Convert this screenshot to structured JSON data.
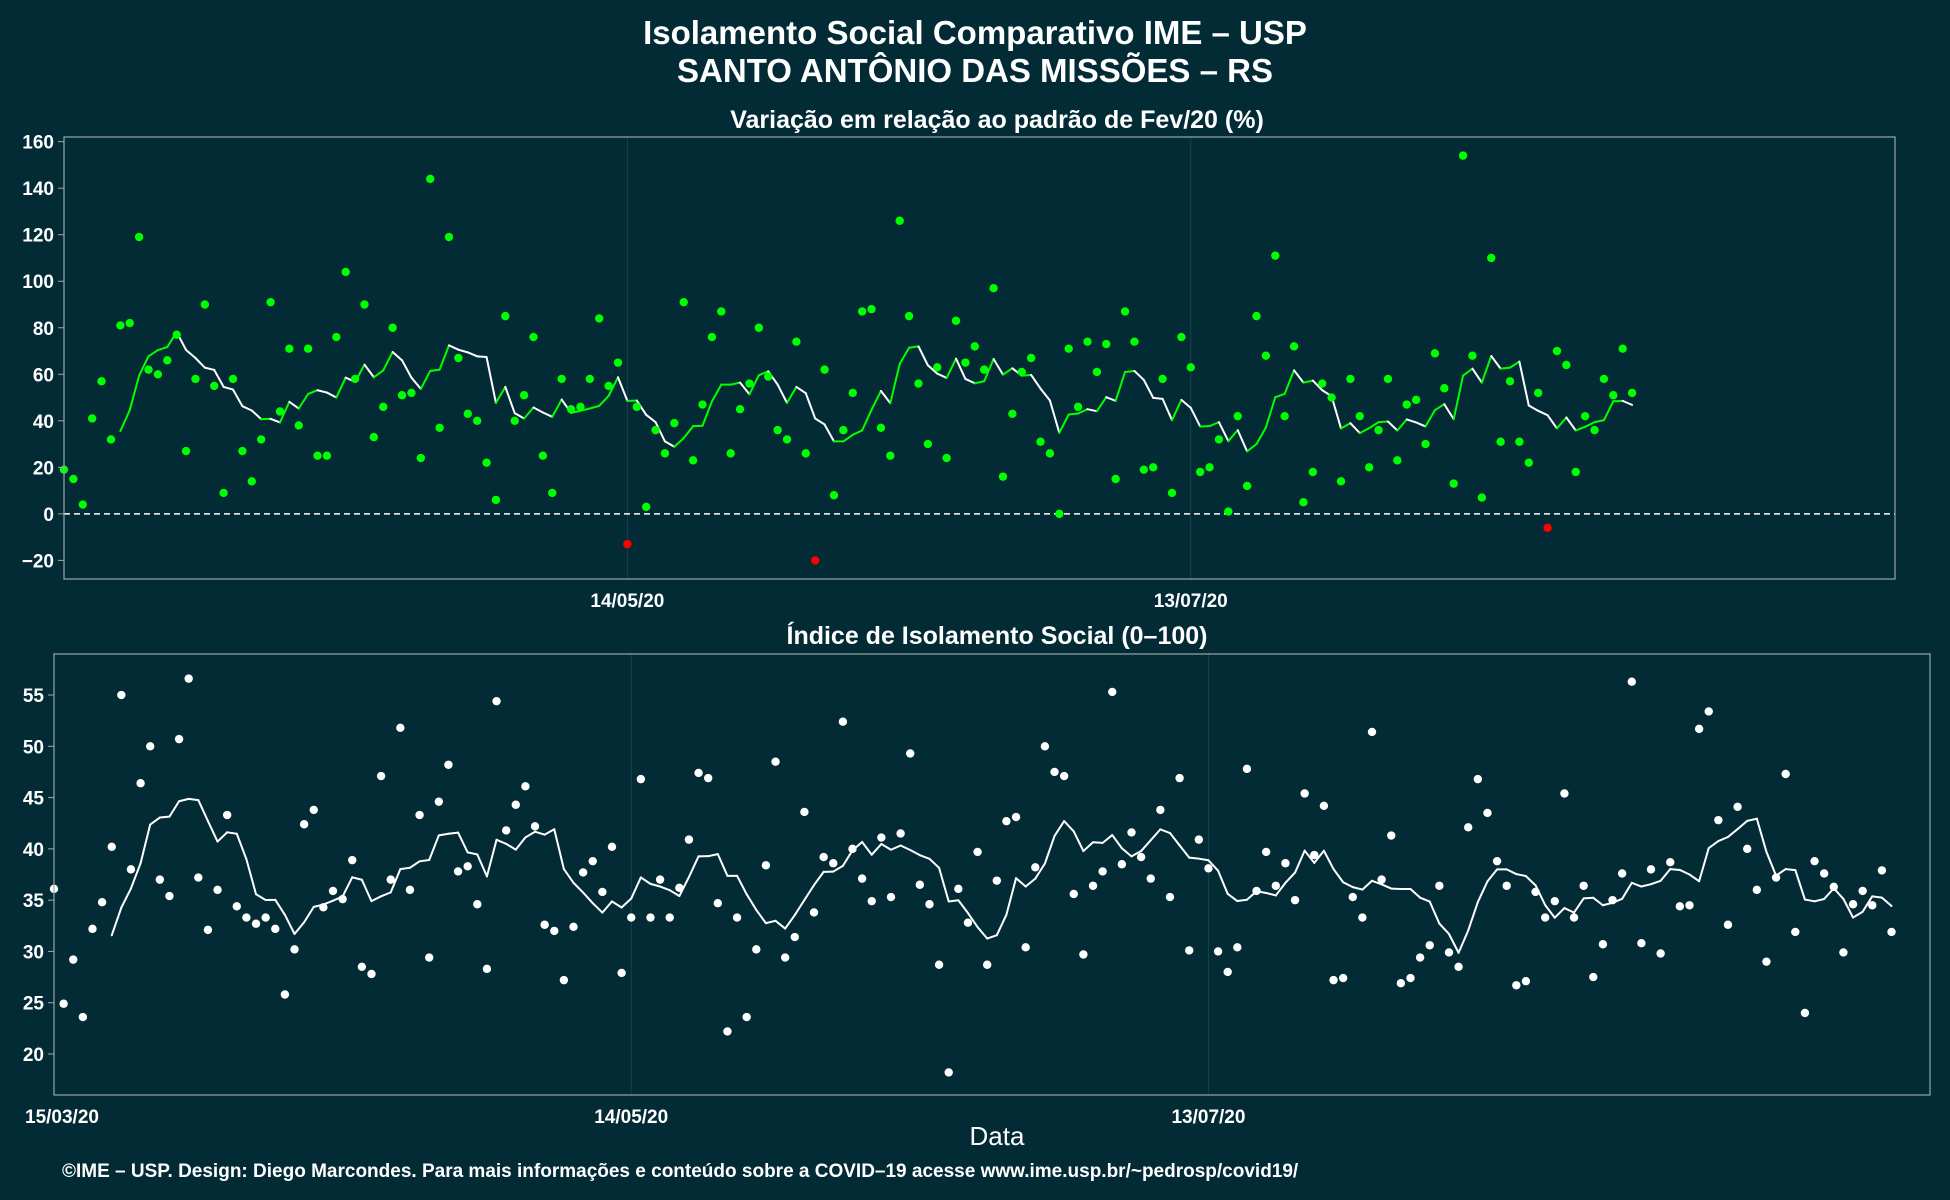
{
  "title_line1": "Isolamento Social Comparativo IME – USP",
  "title_line2": "SANTO ANTÔNIO DAS MISSÕES – RS",
  "xlabel": "Data",
  "caption": "©IME – USP. Design: Diego Marcondes. Para mais informações e conteúdo sobre a COVID–19 acesse www.ime.usp.br/~pedrosp/covid19/",
  "colors": {
    "background": "#022b35",
    "positive": "#00ff00",
    "negative": "#ff0000",
    "index": "#ffffff",
    "axis": "#9aa6ab",
    "grid": "#14434e"
  },
  "chart_data": [
    {
      "type": "scatter",
      "title": "Variação em relação ao padrão de Fev/20 (%)",
      "x_start": "15/03/20",
      "x_ticks": [
        "14/05/20",
        "13/07/20"
      ],
      "x_tick_days": [
        60,
        120
      ],
      "xlim_days": [
        0,
        195
      ],
      "ylim": [
        -28,
        162
      ],
      "y_ticks": [
        -20,
        0,
        20,
        40,
        60,
        80,
        100,
        120,
        140,
        160
      ],
      "reference_line": 0,
      "grid": true,
      "smoothing": "moving average (7 days)",
      "points": [
        19,
        15,
        4,
        41,
        57,
        32,
        81,
        82,
        119,
        62,
        60,
        66,
        77,
        27,
        58,
        90,
        55,
        9,
        58,
        27,
        14,
        32,
        91,
        44,
        71,
        38,
        71,
        25,
        25,
        76,
        104,
        58,
        90,
        33,
        46,
        80,
        51,
        52,
        24,
        144,
        37,
        119,
        67,
        43,
        40,
        22,
        6,
        85,
        40,
        51,
        76,
        25,
        9,
        58,
        45,
        46,
        58,
        84,
        55,
        65,
        -13,
        46,
        3,
        36,
        26,
        39,
        91,
        23,
        47,
        76,
        87,
        26,
        45,
        56,
        80,
        59,
        36,
        32,
        74,
        26,
        -20,
        62,
        8,
        36,
        52,
        87,
        88,
        37,
        25,
        126,
        85,
        56,
        30,
        63,
        24,
        83,
        65,
        72,
        62,
        97,
        16,
        43,
        61,
        67,
        31,
        26,
        0,
        71,
        46,
        74,
        61,
        73,
        15,
        87,
        74,
        19,
        20,
        58,
        9,
        76,
        63,
        18,
        20,
        32,
        1,
        42,
        12,
        85,
        68,
        111,
        42,
        72,
        5,
        18,
        56,
        50,
        14,
        58,
        42,
        20,
        36,
        58,
        23,
        47,
        49,
        30,
        69,
        54,
        13,
        154,
        68,
        7,
        110,
        31,
        57,
        31,
        22,
        52,
        -6,
        70,
        64,
        18,
        42,
        36,
        58,
        51,
        71,
        52
      ]
    },
    {
      "type": "scatter",
      "title": "Índice de Isolamento Social (0–100)",
      "x_ticks": [
        "15/03/20",
        "14/05/20",
        "13/07/20"
      ],
      "x_tick_days": [
        0,
        60,
        120
      ],
      "xlim_days": [
        0,
        195
      ],
      "ylim": [
        16,
        59
      ],
      "y_ticks": [
        20,
        25,
        30,
        35,
        40,
        45,
        50,
        55
      ],
      "grid": true,
      "smoothing": "moving average (7 days)",
      "points": [
        36.1,
        24.9,
        29.2,
        23.6,
        32.2,
        34.8,
        40.2,
        55,
        38,
        46.4,
        50,
        37,
        35.4,
        50.7,
        56.6,
        37.2,
        32.1,
        36,
        43.3,
        34.4,
        33.3,
        32.7,
        33.3,
        32.2,
        25.8,
        30.2,
        42.4,
        43.8,
        34.3,
        35.9,
        35.1,
        38.9,
        28.5,
        27.8,
        47.1,
        37,
        51.8,
        36,
        43.3,
        29.4,
        44.6,
        48.2,
        37.8,
        38.3,
        34.6,
        28.3,
        54.4,
        41.8,
        44.3,
        46.1,
        42.2,
        32.6,
        32,
        27.2,
        32.4,
        37.7,
        38.8,
        35.8,
        40.2,
        27.9,
        33.3,
        46.8,
        33.3,
        37,
        33.3,
        36.2,
        40.9,
        47.4,
        46.9,
        34.7,
        22.2,
        33.3,
        23.6,
        30.2,
        38.4,
        48.5,
        29.4,
        31.4,
        43.6,
        33.8,
        39.2,
        38.6,
        52.4,
        40,
        37.1,
        34.9,
        41.1,
        35.3,
        41.5,
        49.3,
        36.5,
        34.6,
        28.7,
        18.2,
        36.1,
        32.8,
        39.7,
        28.7,
        36.9,
        42.7,
        43.1,
        30.4,
        38.2,
        50,
        47.5,
        47.1,
        35.6,
        29.7,
        36.4,
        37.8,
        55.3,
        38.5,
        41.6,
        39.2,
        37.1,
        43.8,
        35.3,
        46.9,
        30.1,
        40.9,
        38.1,
        30,
        28,
        30.4,
        47.8,
        35.9,
        39.7,
        36.4,
        38.6,
        35,
        45.4,
        39.4,
        44.2,
        27.2,
        27.4,
        35.3,
        33.3,
        51.4,
        37,
        41.3,
        26.9,
        27.4,
        29.4,
        30.6,
        36.4,
        29.9,
        28.5,
        42.1,
        46.8,
        43.5,
        38.8,
        36.4,
        26.7,
        27.1,
        35.8,
        33.3,
        34.9,
        45.4,
        33.3,
        36.4,
        27.5,
        30.7,
        35,
        37.6,
        56.3,
        30.8,
        38,
        29.8,
        38.7,
        34.4,
        34.5,
        51.7,
        53.4,
        42.8,
        32.6,
        44.1,
        40,
        36,
        29,
        37.2,
        47.3,
        31.9,
        24,
        38.8,
        37.6,
        36.3,
        29.9,
        34.6,
        35.9,
        34.5,
        37.9,
        31.9
      ]
    }
  ]
}
